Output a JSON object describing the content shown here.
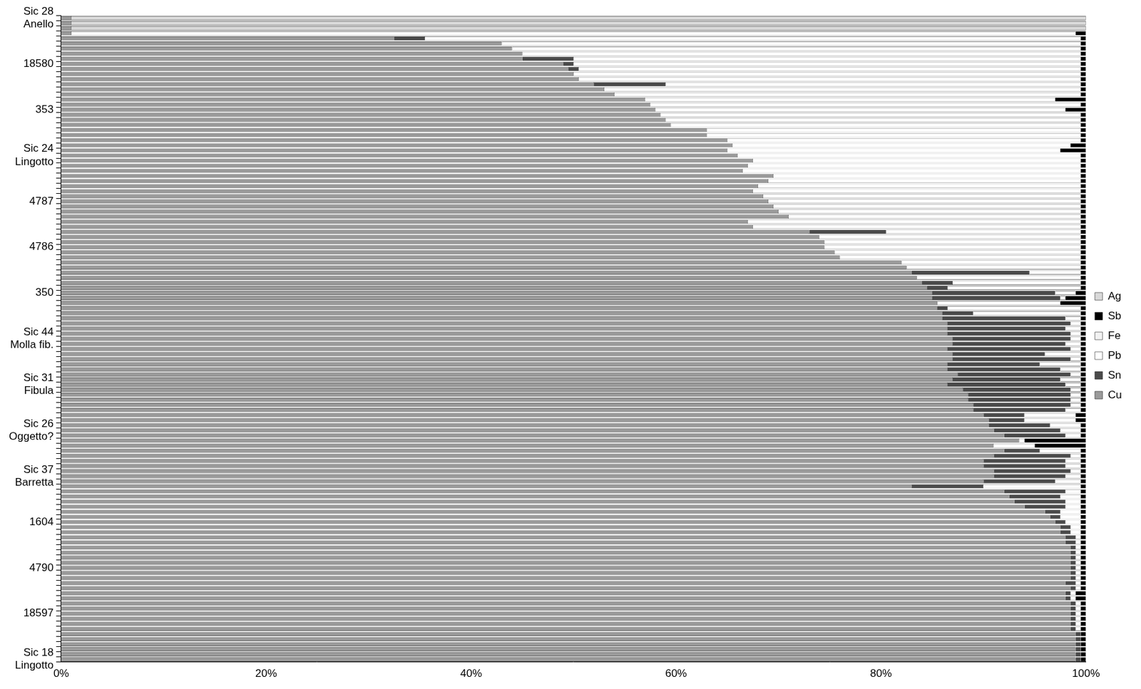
{
  "chart_data": {
    "type": "bar",
    "orientation": "horizontal",
    "stacked": true,
    "grid": false,
    "legend": "right",
    "categories": [
      "Sic 28\nAnello",
      null,
      null,
      null,
      null,
      null,
      null,
      null,
      null,
      "18580",
      null,
      null,
      null,
      null,
      null,
      null,
      null,
      null,
      "353",
      null,
      null,
      null,
      null,
      null,
      null,
      null,
      null,
      "Sic 24\nLingotto",
      null,
      null,
      null,
      null,
      null,
      null,
      null,
      null,
      "4787",
      null,
      null,
      null,
      null,
      null,
      null,
      null,
      null,
      "4786",
      null,
      null,
      null,
      null,
      null,
      null,
      null,
      null,
      "350",
      null,
      null,
      null,
      null,
      null,
      null,
      null,
      null,
      "Sic 44\nMolla fib.",
      null,
      null,
      null,
      null,
      null,
      null,
      null,
      null,
      "Sic 31\nFibula",
      null,
      null,
      null,
      null,
      null,
      null,
      null,
      null,
      "Sic 26\nOggetto?",
      null,
      null,
      null,
      null,
      null,
      null,
      null,
      null,
      "Sic 37\nBarretta",
      null,
      null,
      null,
      null,
      null,
      null,
      null,
      null,
      "1604",
      null,
      null,
      null,
      null,
      null,
      null,
      null,
      null,
      "4790",
      null,
      null,
      null,
      null,
      null,
      null,
      null,
      null,
      "18597",
      null,
      null,
      null,
      null,
      null,
      null,
      null,
      null,
      "Sic 18\nLingotto"
    ],
    "xlim": [
      0,
      100
    ],
    "xticks": [
      {
        "value": 0,
        "label": "0%"
      },
      {
        "value": 20,
        "label": "20%"
      },
      {
        "value": 40,
        "label": "40%"
      },
      {
        "value": 60,
        "label": "60%"
      },
      {
        "value": 80,
        "label": "80%"
      },
      {
        "value": 100,
        "label": "100%"
      }
    ],
    "series": [
      {
        "name": "Cu",
        "color": "#9a9a9a",
        "values": [
          1,
          1,
          1,
          1,
          32.5,
          43,
          44,
          45,
          45,
          49,
          49.5,
          50,
          50.5,
          52,
          53,
          54,
          57,
          57.5,
          58,
          58.5,
          59,
          59.5,
          63,
          63,
          65,
          65.5,
          65,
          66,
          67.5,
          67,
          66.5,
          69.5,
          69,
          68,
          67.5,
          68.5,
          69,
          69.5,
          70,
          71,
          67,
          67.5,
          73,
          74,
          74.5,
          74.5,
          75.5,
          76,
          82,
          82.5,
          83,
          83.5,
          84,
          84.5,
          85,
          85,
          85.5,
          85.5,
          86,
          86,
          86.5,
          86.5,
          86.5,
          87,
          87,
          86.5,
          87,
          87,
          86.5,
          86.5,
          87.5,
          87,
          86.5,
          88,
          88.5,
          88.5,
          89,
          89,
          90,
          90.5,
          90.5,
          91,
          92,
          93.5,
          91,
          92,
          91,
          90,
          90,
          91,
          91,
          90,
          83,
          92,
          92.5,
          93,
          94,
          96,
          96.5,
          97,
          97.5,
          97.5,
          98,
          98,
          98.5,
          98.5,
          98.5,
          98.5,
          98.5,
          98.5,
          98.5,
          98,
          98.5,
          98,
          98,
          98.5,
          98.5,
          98.5,
          98.5,
          98.5,
          98.5,
          99,
          99,
          99,
          99,
          99,
          99
        ]
      },
      {
        "name": "Sn",
        "color": "#4a4a4a",
        "values": [
          0,
          0,
          0,
          0,
          3,
          0,
          0,
          0,
          5,
          1,
          1,
          0,
          0,
          7,
          0,
          0,
          0,
          0,
          0,
          0,
          0,
          0,
          0,
          0,
          0,
          0,
          0,
          0,
          0,
          0,
          0,
          0,
          0,
          0,
          0,
          0,
          0,
          0,
          0,
          0,
          0,
          0,
          7.5,
          0,
          0,
          0,
          0,
          0,
          0,
          0,
          11.5,
          0,
          3,
          2,
          12,
          12.5,
          0,
          1,
          3,
          12,
          12,
          11.5,
          12,
          11.5,
          11,
          12,
          9,
          11.5,
          9,
          11,
          11,
          10.5,
          11.5,
          10.5,
          10,
          10,
          9.5,
          9,
          4,
          3.5,
          6,
          6.5,
          6,
          0,
          0,
          3.5,
          7.5,
          8,
          8,
          7.5,
          7,
          7,
          7,
          6,
          5,
          5,
          4,
          1.5,
          1,
          1,
          1,
          1,
          1,
          1,
          0.5,
          0.5,
          0.5,
          0.5,
          0.5,
          0.5,
          0.5,
          1,
          0.5,
          0.5,
          0.5,
          0.5,
          0.5,
          0.5,
          0.5,
          0.5,
          0.5,
          0.5,
          0.5,
          0.5,
          0.5,
          0.5,
          0.5
        ]
      },
      {
        "name": "Pb",
        "color": "#ffffff",
        "values": [
          0,
          0,
          0,
          98,
          64,
          56.5,
          55.5,
          54.5,
          49.5,
          49.5,
          49,
          49.5,
          49,
          40.5,
          46.5,
          45.5,
          40,
          42,
          40,
          41,
          40.5,
          40,
          36.5,
          36.5,
          34.5,
          33,
          32.5,
          33.5,
          32,
          32.5,
          33,
          30,
          30.5,
          31.5,
          32,
          31,
          30.5,
          30,
          29.5,
          28.5,
          32.5,
          32,
          19,
          25.5,
          25,
          25,
          24,
          23.5,
          17.5,
          17,
          5,
          16,
          12.5,
          13,
          2,
          0.5,
          12,
          13,
          10.5,
          1.5,
          1,
          1.5,
          1,
          1,
          1.5,
          1,
          3.5,
          1,
          4,
          2,
          1,
          2,
          1.5,
          1,
          1,
          1,
          1,
          1.5,
          5,
          5,
          3,
          2,
          1.5,
          0.5,
          4,
          4,
          1,
          1.5,
          1.5,
          1,
          1.5,
          2.5,
          9.5,
          1.5,
          2,
          1.5,
          1.5,
          2,
          2,
          1.5,
          1,
          1,
          0.5,
          0.5,
          0.5,
          0.5,
          0.5,
          0.5,
          0.5,
          0.5,
          0.5,
          0.5,
          0.5,
          0.5,
          0.5,
          0.5,
          0.5,
          0.5,
          0.5,
          0.5,
          0.5,
          0,
          0,
          0,
          0,
          0,
          0
        ]
      },
      {
        "name": "Fe",
        "color": "#f2f2f2",
        "values": [
          0,
          0,
          0,
          0,
          0,
          0,
          0,
          0,
          0,
          0,
          0,
          0,
          0,
          0,
          0,
          0,
          0,
          0,
          0,
          0,
          0,
          0,
          0,
          0,
          0,
          0,
          0,
          0,
          0,
          0,
          0,
          0,
          0,
          0,
          0,
          0,
          0,
          0,
          0,
          0,
          0,
          0,
          0,
          0,
          0,
          0,
          0,
          0,
          0,
          0,
          0,
          0,
          0,
          0,
          0,
          0,
          0,
          0,
          0,
          0,
          0,
          0,
          0,
          0,
          0,
          0,
          0,
          0,
          0,
          0,
          0,
          0,
          0,
          0,
          0,
          0,
          0,
          0,
          0,
          0,
          0,
          0,
          0,
          0,
          0,
          0,
          0,
          0,
          0,
          0,
          0,
          0,
          0,
          0,
          0,
          0,
          0,
          0,
          0,
          0,
          0,
          0,
          0,
          0,
          0,
          0,
          0,
          0,
          0,
          0,
          0,
          0,
          0,
          0,
          0,
          0,
          0,
          0,
          0,
          0,
          0,
          0,
          0,
          0,
          0,
          0,
          0
        ]
      },
      {
        "name": "Sb",
        "color": "#000000",
        "values": [
          0,
          0,
          0,
          1,
          0.5,
          0.5,
          0.5,
          0.5,
          0.5,
          0.5,
          0.5,
          0.5,
          0.5,
          0.5,
          0.5,
          0.5,
          3,
          0.5,
          2,
          0.5,
          0.5,
          0.5,
          0.5,
          0.5,
          0.5,
          1.5,
          2.5,
          0.5,
          0.5,
          0.5,
          0.5,
          0.5,
          0.5,
          0.5,
          0.5,
          0.5,
          0.5,
          0.5,
          0.5,
          0.5,
          0.5,
          0.5,
          0.5,
          0.5,
          0.5,
          0.5,
          0.5,
          0.5,
          0.5,
          0.5,
          0.5,
          0.5,
          0.5,
          0.5,
          1,
          2,
          2.5,
          0.5,
          0.5,
          0.5,
          0.5,
          0.5,
          0.5,
          0.5,
          0.5,
          0.5,
          0.5,
          0.5,
          0.5,
          0.5,
          0.5,
          0.5,
          0.5,
          0.5,
          0.5,
          0.5,
          0.5,
          0.5,
          1,
          1,
          0.5,
          0.5,
          0.5,
          6,
          5,
          0.5,
          0.5,
          0.5,
          0.5,
          0.5,
          0.5,
          0.5,
          0.5,
          0.5,
          0.5,
          0.5,
          0.5,
          0.5,
          0.5,
          0.5,
          0.5,
          0.5,
          0.5,
          0.5,
          0.5,
          0.5,
          0.5,
          0.5,
          0.5,
          0.5,
          0.5,
          0.5,
          0.5,
          1,
          1,
          0.5,
          0.5,
          0.5,
          0.5,
          0.5,
          0.5,
          0.5,
          0.5,
          0.5,
          0.5,
          0.5,
          0.5
        ]
      },
      {
        "name": "Ag",
        "color": "#d9d9d9",
        "values": [
          99,
          99,
          99,
          0,
          0,
          0,
          0,
          0,
          0,
          0,
          0,
          0,
          0,
          0,
          0,
          0,
          0,
          0,
          0,
          0,
          0,
          0,
          0,
          0,
          0,
          0,
          0,
          0,
          0,
          0,
          0,
          0,
          0,
          0,
          0,
          0,
          0,
          0,
          0,
          0,
          0,
          0,
          0,
          0,
          0,
          0,
          0,
          0,
          0,
          0,
          0,
          0,
          0,
          0,
          0,
          0,
          0,
          0,
          0,
          0,
          0,
          0,
          0,
          0,
          0,
          0,
          0,
          0,
          0,
          0,
          0,
          0,
          0,
          0,
          0,
          0,
          0,
          0,
          0,
          0,
          0,
          0,
          0,
          0,
          0,
          0,
          0,
          0,
          0,
          0,
          0,
          0,
          0,
          0,
          0,
          0,
          0,
          0,
          0,
          0,
          0,
          0,
          0,
          0,
          0,
          0,
          0,
          0,
          0,
          0,
          0,
          0,
          0,
          0,
          0,
          0,
          0,
          0,
          0,
          0,
          0,
          0,
          0,
          0,
          0,
          0,
          0
        ]
      }
    ]
  }
}
